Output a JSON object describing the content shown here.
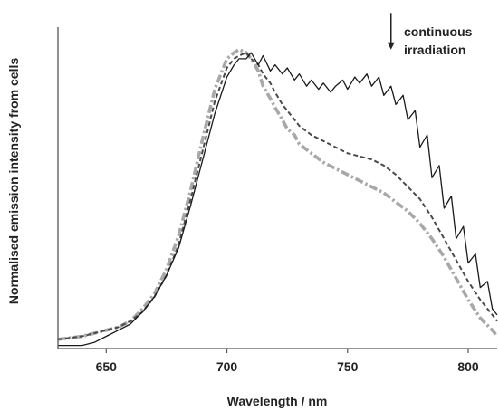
{
  "chart_data": {
    "type": "line",
    "title": "",
    "xlabel": "Wavelength / nm",
    "ylabel": "Normalised emission intensity from cells",
    "xlim": [
      630,
      812
    ],
    "ylim": [
      0,
      1.0
    ],
    "xticks": [
      650,
      700,
      750,
      800
    ],
    "grid": false,
    "legend": "none",
    "annotation": {
      "lines": [
        "continuous",
        "irradiation"
      ],
      "arrow_x": 768,
      "arrow_from_y": 1.1,
      "arrow_to_y": 0.98
    },
    "series": [
      {
        "style": "solid",
        "color": "#1a1a1a",
        "x": [
          630,
          640,
          645,
          650,
          655,
          660,
          665,
          670,
          675,
          680,
          685,
          690,
          695,
          700,
          703,
          705,
          708,
          710,
          713,
          715,
          718,
          720,
          723,
          725,
          728,
          730,
          733,
          735,
          738,
          740,
          743,
          745,
          748,
          750,
          753,
          755,
          758,
          760,
          763,
          765,
          768,
          770,
          773,
          775,
          778,
          780,
          783,
          785,
          788,
          790,
          793,
          795,
          798,
          800,
          803,
          805,
          808,
          810,
          812
        ],
        "y": [
          0.01,
          0.01,
          0.02,
          0.04,
          0.06,
          0.08,
          0.12,
          0.17,
          0.24,
          0.33,
          0.47,
          0.62,
          0.77,
          0.89,
          0.93,
          0.95,
          0.95,
          0.97,
          0.93,
          0.96,
          0.91,
          0.93,
          0.9,
          0.92,
          0.88,
          0.9,
          0.86,
          0.88,
          0.85,
          0.87,
          0.84,
          0.86,
          0.88,
          0.85,
          0.89,
          0.87,
          0.9,
          0.86,
          0.89,
          0.83,
          0.86,
          0.8,
          0.83,
          0.75,
          0.78,
          0.66,
          0.7,
          0.56,
          0.6,
          0.46,
          0.5,
          0.36,
          0.4,
          0.28,
          0.31,
          0.2,
          0.22,
          0.13,
          0.11
        ]
      },
      {
        "style": "dash",
        "color": "#4a4a4a",
        "x": [
          630,
          640,
          645,
          650,
          655,
          660,
          665,
          670,
          675,
          680,
          685,
          690,
          695,
          700,
          703,
          705,
          708,
          710,
          713,
          715,
          718,
          720,
          723,
          725,
          728,
          730,
          735,
          740,
          745,
          750,
          755,
          760,
          765,
          770,
          775,
          780,
          785,
          790,
          795,
          800,
          805,
          810,
          812
        ],
        "y": [
          0.03,
          0.04,
          0.05,
          0.06,
          0.07,
          0.09,
          0.12,
          0.17,
          0.24,
          0.34,
          0.49,
          0.65,
          0.81,
          0.92,
          0.95,
          0.96,
          0.97,
          0.95,
          0.93,
          0.9,
          0.87,
          0.84,
          0.8,
          0.78,
          0.75,
          0.73,
          0.7,
          0.68,
          0.66,
          0.64,
          0.63,
          0.62,
          0.6,
          0.57,
          0.53,
          0.49,
          0.43,
          0.36,
          0.29,
          0.22,
          0.16,
          0.11,
          0.09
        ]
      },
      {
        "style": "dashdot",
        "color": "#a8a8a8",
        "x": [
          630,
          640,
          645,
          650,
          655,
          660,
          665,
          670,
          675,
          680,
          685,
          690,
          695,
          700,
          703,
          705,
          708,
          710,
          713,
          715,
          718,
          720,
          723,
          725,
          728,
          730,
          735,
          740,
          745,
          750,
          755,
          760,
          765,
          770,
          775,
          780,
          785,
          790,
          795,
          800,
          805,
          810,
          812
        ],
        "y": [
          0.03,
          0.04,
          0.05,
          0.06,
          0.07,
          0.09,
          0.13,
          0.18,
          0.26,
          0.37,
          0.52,
          0.69,
          0.85,
          0.95,
          0.97,
          0.98,
          0.97,
          0.95,
          0.91,
          0.86,
          0.82,
          0.79,
          0.75,
          0.72,
          0.7,
          0.67,
          0.64,
          0.61,
          0.59,
          0.57,
          0.55,
          0.53,
          0.51,
          0.48,
          0.45,
          0.41,
          0.36,
          0.3,
          0.23,
          0.16,
          0.1,
          0.06,
          0.04
        ]
      }
    ]
  }
}
